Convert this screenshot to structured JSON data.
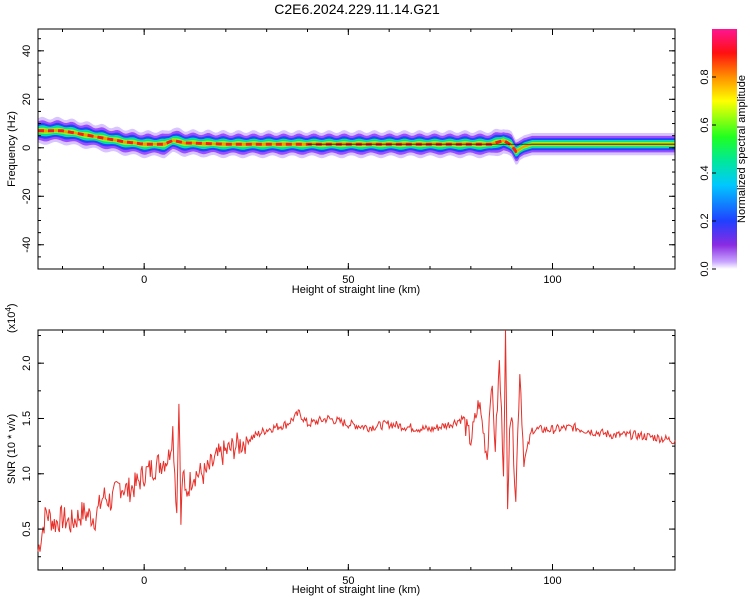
{
  "title": "C2E6.2024.229.11.14.G21",
  "chart_data": [
    {
      "type": "heatmap",
      "xlabel": "Height of straight line (km)",
      "ylabel": "Frequency (Hz)",
      "xlim": [
        -26,
        130
      ],
      "ylim": [
        -50,
        49
      ],
      "xticks": [
        "0",
        "50",
        "100"
      ],
      "yticks": [
        "-40",
        "-20",
        "0",
        "20",
        "40"
      ],
      "colorbar": {
        "label": "Normalized spectral amplitude",
        "range": [
          0,
          1
        ],
        "ticks": [
          "0.0",
          "0.2",
          "0.4",
          "0.6",
          "0.8"
        ]
      },
      "ridge": {
        "x": [
          -26,
          -20,
          -15,
          -10,
          -5,
          0,
          5,
          7,
          10,
          20,
          30,
          40,
          45,
          50,
          60,
          70,
          80,
          85,
          88,
          90,
          91,
          93,
          95,
          100,
          110,
          120,
          130
        ],
        "freq": [
          7,
          7,
          5.5,
          4,
          2.5,
          1.5,
          1.5,
          3,
          2,
          1.5,
          1.5,
          1.5,
          1.5,
          1.5,
          1.5,
          1.5,
          1.5,
          1.5,
          3,
          1,
          -1.5,
          0.5,
          1.5,
          1.5,
          1.5,
          1.5,
          1.5
        ]
      }
    },
    {
      "type": "line",
      "xlabel": "Height of straight line (km)",
      "ylabel": "SNR (10 * v/v)",
      "yscale_note": "(x10",
      "yscale_exp": "4",
      "scale_factor": 10000,
      "xlim": [
        -26,
        130
      ],
      "ylim": [
        0.13,
        2.3
      ],
      "xticks": [
        "0",
        "50",
        "100"
      ],
      "yticks": [
        "0.5",
        "1.0",
        "1.5",
        "2.0"
      ],
      "color": "#e8302a",
      "series": [
        {
          "x": [
            -26,
            -24,
            -22,
            -20,
            -18,
            -15,
            -12,
            -10,
            -8,
            -6,
            -4,
            -2,
            0,
            2,
            4,
            6,
            7,
            8,
            8.5,
            9,
            9.5,
            10,
            12,
            15,
            18,
            20,
            25,
            30,
            35,
            38,
            40,
            45,
            50,
            55,
            60,
            65,
            70,
            75,
            78,
            80,
            82,
            84,
            85,
            86,
            87,
            88,
            88.5,
            89,
            89.5,
            90,
            91,
            92,
            93,
            95,
            100,
            105,
            110,
            115,
            120,
            125,
            130
          ],
          "y": [
            0.3,
            0.65,
            0.55,
            0.6,
            0.55,
            0.65,
            0.6,
            0.8,
            0.75,
            0.9,
            0.85,
            0.9,
            1.0,
            1.05,
            1.1,
            1.15,
            1.4,
            0.65,
            1.75,
            0.55,
            1.05,
            0.8,
            1.0,
            1.0,
            1.15,
            1.2,
            1.3,
            1.4,
            1.45,
            1.55,
            1.45,
            1.5,
            1.45,
            1.42,
            1.45,
            1.42,
            1.4,
            1.45,
            1.5,
            1.3,
            1.65,
            1.15,
            1.85,
            1.25,
            2.0,
            1.05,
            2.25,
            0.65,
            1.5,
            1.55,
            0.8,
            1.95,
            1.1,
            1.4,
            1.4,
            1.42,
            1.38,
            1.35,
            1.35,
            1.33,
            1.3
          ]
        }
      ]
    }
  ]
}
